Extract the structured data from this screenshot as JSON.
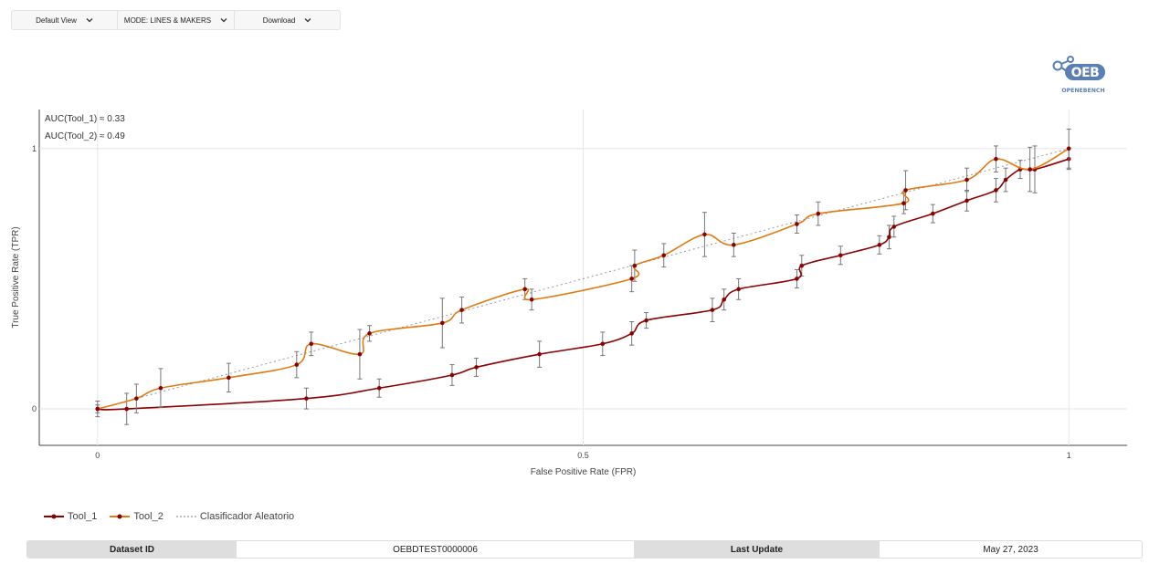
{
  "toolbar": {
    "view_label": "Default View",
    "mode_label": "MODE: LINES & MAKERS",
    "download_label": "Download"
  },
  "logo": {
    "text": "OPENEBENCH",
    "mark": "OEB"
  },
  "chart_data": {
    "type": "line",
    "title": "",
    "xlabel": "False Positive Rate (FPR)",
    "ylabel": "True Positive Rate (TPR)",
    "xlim": [
      -0.06,
      1.06
    ],
    "ylim": [
      -0.14,
      1.15
    ],
    "xticks": [
      0,
      0.5,
      1
    ],
    "xtick_labels": [
      "0",
      "0.5",
      "1"
    ],
    "yticks": [
      0,
      1
    ],
    "ytick_labels": [
      "0",
      "1"
    ],
    "grid": true,
    "annotations": [
      "AUC(Tool_1) ≈ 0.33",
      "AUC(Tool_2) ≈ 0.49"
    ],
    "legend_position": "bottom-left",
    "series": [
      {
        "name": "Tool_1",
        "color": "#8b0000",
        "x": [
          0,
          0.03,
          0.215,
          0.29,
          0.365,
          0.39,
          0.455,
          0.52,
          0.55,
          0.565,
          0.633,
          0.645,
          0.66,
          0.72,
          0.725,
          0.765,
          0.805,
          0.815,
          0.82,
          0.86,
          0.895,
          0.925,
          0.935,
          0.95,
          0.965,
          1
        ],
        "y": [
          0,
          0,
          0.04,
          0.08,
          0.13,
          0.16,
          0.21,
          0.25,
          0.29,
          0.34,
          0.38,
          0.42,
          0.46,
          0.5,
          0.55,
          0.59,
          0.63,
          0.66,
          0.7,
          0.75,
          0.8,
          0.84,
          0.88,
          0.92,
          0.92,
          0.96
        ],
        "err": [
          0.015,
          0.06,
          0.04,
          0.035,
          0.04,
          0.035,
          0.05,
          0.045,
          0.045,
          0.03,
          0.045,
          0.04,
          0.04,
          0.035,
          0.04,
          0.035,
          0.035,
          0.045,
          0.04,
          0.035,
          0.04,
          0.045,
          0.045,
          0.035,
          0.09,
          0.04
        ]
      },
      {
        "name": "Tool_2",
        "color": "#e07b10",
        "x": [
          0,
          0.04,
          0.065,
          0.135,
          0.205,
          0.22,
          0.27,
          0.28,
          0.355,
          0.375,
          0.44,
          0.447,
          0.55,
          0.553,
          0.583,
          0.625,
          0.655,
          0.72,
          0.742,
          0.83,
          0.832,
          0.895,
          0.925,
          0.96,
          1
        ],
        "y": [
          0,
          0.04,
          0.08,
          0.12,
          0.17,
          0.25,
          0.21,
          0.29,
          0.33,
          0.38,
          0.46,
          0.42,
          0.5,
          0.55,
          0.59,
          0.67,
          0.63,
          0.71,
          0.75,
          0.79,
          0.84,
          0.88,
          0.96,
          0.92,
          1.0
        ],
        "err": [
          0.03,
          0.055,
          0.075,
          0.055,
          0.05,
          0.045,
          0.095,
          0.03,
          0.095,
          0.05,
          0.04,
          0.04,
          0.05,
          0.06,
          0.045,
          0.085,
          0.045,
          0.035,
          0.045,
          0.04,
          0.075,
          0.045,
          0.05,
          0.085,
          0.075
        ]
      },
      {
        "name": "Clasificador Aleatorio",
        "color": "#999999",
        "dash": true,
        "x": [
          0,
          1
        ],
        "y": [
          0,
          1
        ]
      }
    ]
  },
  "info": {
    "dataset_label": "Dataset ID",
    "dataset_value": "OEBDTEST0000006",
    "update_label": "Last Update",
    "update_value": "May 27, 2023"
  }
}
